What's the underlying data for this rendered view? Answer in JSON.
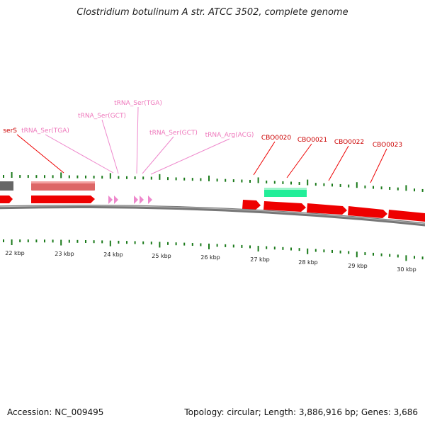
{
  "title": "Clostridium botulinum A str. ATCC 3502, complete genome",
  "footer": {
    "accession": "Accession: NC_009495",
    "topology": "Topology: circular; Length: 3,886,916 bp; Genes: 3,686"
  },
  "colors": {
    "cds": "#ee0000",
    "cds_label": "#cc0000",
    "trna": "#ee88cc",
    "trna_label": "#ee77bb",
    "rrna_box": "#dd6666",
    "misc_box": "#666666",
    "gene_box": "#22ee99",
    "tick": "#1a7a1a",
    "backbone": "#777777"
  },
  "scale_labels": [
    "22 kbp",
    "23 kbp",
    "24 kbp",
    "25 kbp",
    "26 kbp",
    "27 kbp",
    "28 kbp",
    "29 kbp",
    "30 kbp"
  ],
  "feature_labels": [
    {
      "text": "serS",
      "kind": "cds"
    },
    {
      "text": "tRNA_Ser(TGA)",
      "kind": "trna"
    },
    {
      "text": "tRNA_Ser(GCT)",
      "kind": "trna"
    },
    {
      "text": "tRNA_Ser(TGA)",
      "kind": "trna"
    },
    {
      "text": "tRNA_Ser(GCT)",
      "kind": "trna"
    },
    {
      "text": "tRNA_Arg(ACG)",
      "kind": "trna"
    },
    {
      "text": "CBO0020",
      "kind": "cds"
    },
    {
      "text": "CBO0021",
      "kind": "cds"
    },
    {
      "text": "CBO0022",
      "kind": "cds"
    },
    {
      "text": "CBO0023",
      "kind": "cds"
    }
  ]
}
